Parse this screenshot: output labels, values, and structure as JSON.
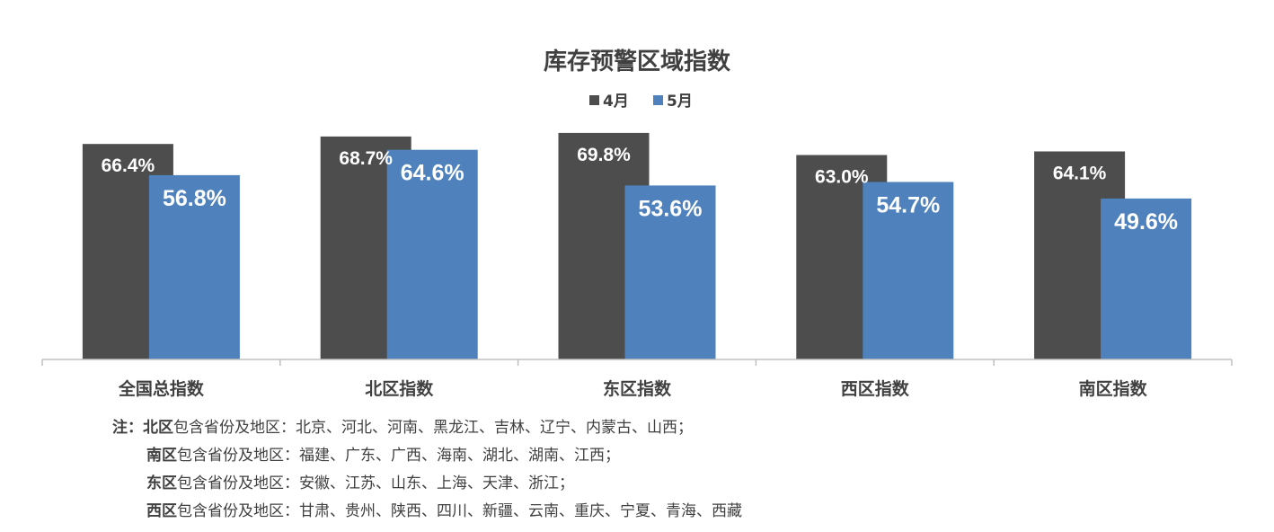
{
  "chart_data": {
    "type": "bar",
    "title": "库存预警区域指数",
    "categories": [
      "全国总指数",
      "北区指数",
      "东区指数",
      "西区指数",
      "南区指数"
    ],
    "series": [
      {
        "name": "4月",
        "values": [
          66.4,
          68.7,
          69.8,
          63.0,
          64.1
        ],
        "labels": [
          "66.4%",
          "68.7%",
          "69.8%",
          "63.0%",
          "64.1%"
        ],
        "color": "#4d4d4d"
      },
      {
        "name": "5月",
        "values": [
          56.8,
          64.6,
          53.6,
          54.7,
          49.6
        ],
        "labels": [
          "56.8%",
          "64.6%",
          "53.6%",
          "54.7%",
          "49.6%"
        ],
        "color": "#4f81bd"
      }
    ],
    "ylim": [
      0,
      72
    ],
    "legend": "top-center",
    "grid": false,
    "xlabel": "",
    "ylabel": ""
  },
  "notes": {
    "prefix": "注：",
    "lines": [
      {
        "region": "北区",
        "text": "包含省份及地区：北京、河北、河南、黑龙江、吉林、辽宁、内蒙古、山西；"
      },
      {
        "region": "南区",
        "text": "包含省份及地区：福建、广东、广西、海南、湖北、湖南、江西；"
      },
      {
        "region": "东区",
        "text": "包含省份及地区：安徽、江苏、山东、上海、天津、浙江；"
      },
      {
        "region": "西区",
        "text": "包含省份及地区：甘肃、贵州、陕西、四川、新疆、云南、重庆、宁夏、青海、西藏"
      }
    ]
  }
}
